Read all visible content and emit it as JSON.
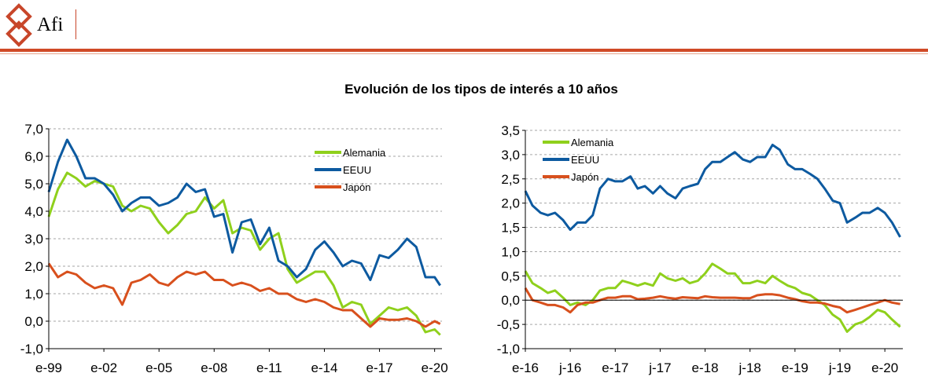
{
  "header": {
    "logo_text": "Afi"
  },
  "page_title": "Evolución de los tipos de interés a 10 años",
  "colors": {
    "accent": "#d04a27",
    "alemania": "#8fd01c",
    "eeuu": "#0d5aa0",
    "japon": "#d8501d"
  },
  "chart_data": [
    {
      "type": "line",
      "title": "",
      "ylim": [
        -1.0,
        7.0
      ],
      "yticks": [
        -1.0,
        0.0,
        1.0,
        2.0,
        3.0,
        4.0,
        5.0,
        6.0,
        7.0
      ],
      "ytick_labels": [
        "-1,0",
        "0,0",
        "1,0",
        "2,0",
        "3,0",
        "4,0",
        "5,0",
        "6,0",
        "7,0"
      ],
      "xlim": [
        1999.0,
        2020.4
      ],
      "xticks": [
        1999.0,
        2002.0,
        2005.0,
        2008.0,
        2011.0,
        2014.0,
        2017.0,
        2020.0
      ],
      "xtick_labels": [
        "e-99",
        "e-02",
        "e-05",
        "e-08",
        "e-11",
        "e-14",
        "e-17",
        "e-20"
      ],
      "grid": "horizontal-dashed",
      "legend": "top-right",
      "series": [
        {
          "name": "Alemania",
          "color": "#8fd01c",
          "x": [
            1999.0,
            1999.5,
            2000.0,
            2000.5,
            2001.0,
            2001.5,
            2002.0,
            2002.5,
            2003.0,
            2003.5,
            2004.0,
            2004.5,
            2005.0,
            2005.5,
            2006.0,
            2006.5,
            2007.0,
            2007.5,
            2008.0,
            2008.5,
            2009.0,
            2009.5,
            2010.0,
            2010.5,
            2011.0,
            2011.5,
            2012.0,
            2012.5,
            2013.0,
            2013.5,
            2014.0,
            2014.5,
            2015.0,
            2015.5,
            2016.0,
            2016.5,
            2017.0,
            2017.5,
            2018.0,
            2018.5,
            2019.0,
            2019.5,
            2020.0,
            2020.3
          ],
          "values": [
            3.8,
            4.8,
            5.4,
            5.2,
            4.9,
            5.1,
            5.0,
            4.9,
            4.2,
            4.0,
            4.2,
            4.1,
            3.6,
            3.2,
            3.5,
            3.9,
            4.0,
            4.5,
            4.1,
            4.4,
            3.2,
            3.4,
            3.3,
            2.6,
            3.0,
            3.2,
            1.9,
            1.4,
            1.6,
            1.8,
            1.8,
            1.3,
            0.5,
            0.7,
            0.6,
            -0.1,
            0.2,
            0.5,
            0.4,
            0.5,
            0.2,
            -0.4,
            -0.3,
            -0.5
          ]
        },
        {
          "name": "EEUU",
          "color": "#0d5aa0",
          "x": [
            1999.0,
            1999.5,
            2000.0,
            2000.5,
            2001.0,
            2001.5,
            2002.0,
            2002.5,
            2003.0,
            2003.5,
            2004.0,
            2004.5,
            2005.0,
            2005.5,
            2006.0,
            2006.5,
            2007.0,
            2007.5,
            2008.0,
            2008.5,
            2009.0,
            2009.5,
            2010.0,
            2010.5,
            2011.0,
            2011.5,
            2012.0,
            2012.5,
            2013.0,
            2013.5,
            2014.0,
            2014.5,
            2015.0,
            2015.5,
            2016.0,
            2016.5,
            2017.0,
            2017.5,
            2018.0,
            2018.5,
            2019.0,
            2019.5,
            2020.0,
            2020.3
          ],
          "values": [
            4.7,
            5.8,
            6.6,
            6.0,
            5.2,
            5.2,
            5.0,
            4.6,
            4.0,
            4.3,
            4.5,
            4.5,
            4.2,
            4.3,
            4.5,
            5.0,
            4.7,
            4.8,
            3.8,
            3.9,
            2.5,
            3.6,
            3.7,
            2.8,
            3.4,
            2.2,
            2.0,
            1.6,
            1.9,
            2.6,
            2.9,
            2.5,
            2.0,
            2.2,
            2.1,
            1.5,
            2.4,
            2.3,
            2.6,
            3.0,
            2.7,
            1.6,
            1.6,
            1.3
          ]
        },
        {
          "name": "Japón",
          "color": "#d8501d",
          "x": [
            1999.0,
            1999.5,
            2000.0,
            2000.5,
            2001.0,
            2001.5,
            2002.0,
            2002.5,
            2003.0,
            2003.5,
            2004.0,
            2004.5,
            2005.0,
            2005.5,
            2006.0,
            2006.5,
            2007.0,
            2007.5,
            2008.0,
            2008.5,
            2009.0,
            2009.5,
            2010.0,
            2010.5,
            2011.0,
            2011.5,
            2012.0,
            2012.5,
            2013.0,
            2013.5,
            2014.0,
            2014.5,
            2015.0,
            2015.5,
            2016.0,
            2016.5,
            2017.0,
            2017.5,
            2018.0,
            2018.5,
            2019.0,
            2019.5,
            2020.0,
            2020.3
          ],
          "values": [
            2.1,
            1.6,
            1.8,
            1.7,
            1.4,
            1.2,
            1.3,
            1.2,
            0.6,
            1.4,
            1.5,
            1.7,
            1.4,
            1.3,
            1.6,
            1.8,
            1.7,
            1.8,
            1.5,
            1.5,
            1.3,
            1.4,
            1.3,
            1.1,
            1.2,
            1.0,
            1.0,
            0.8,
            0.7,
            0.8,
            0.7,
            0.5,
            0.4,
            0.4,
            0.1,
            -0.2,
            0.1,
            0.05,
            0.05,
            0.1,
            0.0,
            -0.2,
            0.0,
            -0.1
          ]
        }
      ]
    },
    {
      "type": "line",
      "title": "",
      "ylim": [
        -1.0,
        3.5
      ],
      "yticks": [
        -1.0,
        -0.5,
        0.0,
        0.5,
        1.0,
        1.5,
        2.0,
        2.5,
        3.0,
        3.5
      ],
      "ytick_labels": [
        "-1,0",
        "-0,5",
        "0,0",
        "0,5",
        "1,0",
        "1,5",
        "2,0",
        "2,5",
        "3,0",
        "3,5"
      ],
      "xlim": [
        2016.0,
        2020.2
      ],
      "xticks": [
        2016.0,
        2016.5,
        2017.0,
        2017.5,
        2018.0,
        2018.5,
        2019.0,
        2019.5,
        2020.0
      ],
      "xtick_labels": [
        "e-16",
        "j-16",
        "e-17",
        "j-17",
        "e-18",
        "j-18",
        "e-19",
        "j-19",
        "e-20"
      ],
      "grid": "horizontal-dashed",
      "legend": "top-left",
      "series": [
        {
          "name": "Alemania",
          "color": "#8fd01c",
          "x": [
            2016.0,
            2016.08,
            2016.17,
            2016.25,
            2016.33,
            2016.42,
            2016.5,
            2016.58,
            2016.67,
            2016.75,
            2016.83,
            2016.92,
            2017.0,
            2017.08,
            2017.17,
            2017.25,
            2017.33,
            2017.42,
            2017.5,
            2017.58,
            2017.67,
            2017.75,
            2017.83,
            2017.92,
            2018.0,
            2018.08,
            2018.17,
            2018.25,
            2018.33,
            2018.42,
            2018.5,
            2018.58,
            2018.67,
            2018.75,
            2018.83,
            2018.92,
            2019.0,
            2019.08,
            2019.17,
            2019.25,
            2019.33,
            2019.42,
            2019.5,
            2019.58,
            2019.67,
            2019.75,
            2019.83,
            2019.92,
            2020.0,
            2020.08,
            2020.17
          ],
          "values": [
            0.6,
            0.35,
            0.25,
            0.15,
            0.2,
            0.05,
            -0.1,
            -0.05,
            -0.1,
            0.0,
            0.2,
            0.25,
            0.25,
            0.4,
            0.35,
            0.3,
            0.35,
            0.3,
            0.55,
            0.45,
            0.4,
            0.45,
            0.35,
            0.4,
            0.55,
            0.75,
            0.65,
            0.55,
            0.55,
            0.35,
            0.35,
            0.4,
            0.35,
            0.5,
            0.4,
            0.3,
            0.25,
            0.15,
            0.1,
            0.0,
            -0.1,
            -0.3,
            -0.4,
            -0.65,
            -0.5,
            -0.45,
            -0.35,
            -0.2,
            -0.25,
            -0.4,
            -0.55
          ]
        },
        {
          "name": "EEUU",
          "color": "#0d5aa0",
          "x": [
            2016.0,
            2016.08,
            2016.17,
            2016.25,
            2016.33,
            2016.42,
            2016.5,
            2016.58,
            2016.67,
            2016.75,
            2016.83,
            2016.92,
            2017.0,
            2017.08,
            2017.17,
            2017.25,
            2017.33,
            2017.42,
            2017.5,
            2017.58,
            2017.67,
            2017.75,
            2017.83,
            2017.92,
            2018.0,
            2018.08,
            2018.17,
            2018.25,
            2018.33,
            2018.42,
            2018.5,
            2018.58,
            2018.67,
            2018.75,
            2018.83,
            2018.92,
            2019.0,
            2019.08,
            2019.17,
            2019.25,
            2019.33,
            2019.42,
            2019.5,
            2019.58,
            2019.67,
            2019.75,
            2019.83,
            2019.92,
            2020.0,
            2020.08,
            2020.17
          ],
          "values": [
            2.25,
            1.95,
            1.8,
            1.75,
            1.8,
            1.65,
            1.45,
            1.6,
            1.6,
            1.75,
            2.3,
            2.5,
            2.45,
            2.45,
            2.55,
            2.3,
            2.35,
            2.2,
            2.35,
            2.2,
            2.1,
            2.3,
            2.35,
            2.4,
            2.7,
            2.85,
            2.85,
            2.95,
            3.05,
            2.9,
            2.85,
            2.95,
            2.95,
            3.2,
            3.1,
            2.8,
            2.7,
            2.7,
            2.6,
            2.5,
            2.3,
            2.05,
            2.0,
            1.6,
            1.7,
            1.8,
            1.8,
            1.9,
            1.8,
            1.6,
            1.3
          ]
        },
        {
          "name": "Japón",
          "color": "#d8501d",
          "x": [
            2016.0,
            2016.08,
            2016.17,
            2016.25,
            2016.33,
            2016.42,
            2016.5,
            2016.58,
            2016.67,
            2016.75,
            2016.83,
            2016.92,
            2017.0,
            2017.08,
            2017.17,
            2017.25,
            2017.33,
            2017.42,
            2017.5,
            2017.58,
            2017.67,
            2017.75,
            2017.83,
            2017.92,
            2018.0,
            2018.08,
            2018.17,
            2018.25,
            2018.33,
            2018.42,
            2018.5,
            2018.58,
            2018.67,
            2018.75,
            2018.83,
            2018.92,
            2019.0,
            2019.08,
            2019.17,
            2019.25,
            2019.33,
            2019.42,
            2019.5,
            2019.58,
            2019.67,
            2019.75,
            2019.83,
            2019.92,
            2020.0,
            2020.08,
            2020.17
          ],
          "values": [
            0.25,
            0.0,
            -0.05,
            -0.1,
            -0.1,
            -0.15,
            -0.25,
            -0.1,
            -0.05,
            -0.05,
            0.0,
            0.05,
            0.05,
            0.08,
            0.08,
            0.02,
            0.03,
            0.05,
            0.08,
            0.05,
            0.03,
            0.06,
            0.05,
            0.04,
            0.08,
            0.06,
            0.05,
            0.05,
            0.05,
            0.04,
            0.04,
            0.1,
            0.12,
            0.12,
            0.1,
            0.05,
            0.02,
            -0.02,
            -0.05,
            -0.05,
            -0.07,
            -0.12,
            -0.15,
            -0.25,
            -0.2,
            -0.15,
            -0.1,
            -0.05,
            0.0,
            -0.05,
            -0.08
          ]
        }
      ]
    }
  ]
}
